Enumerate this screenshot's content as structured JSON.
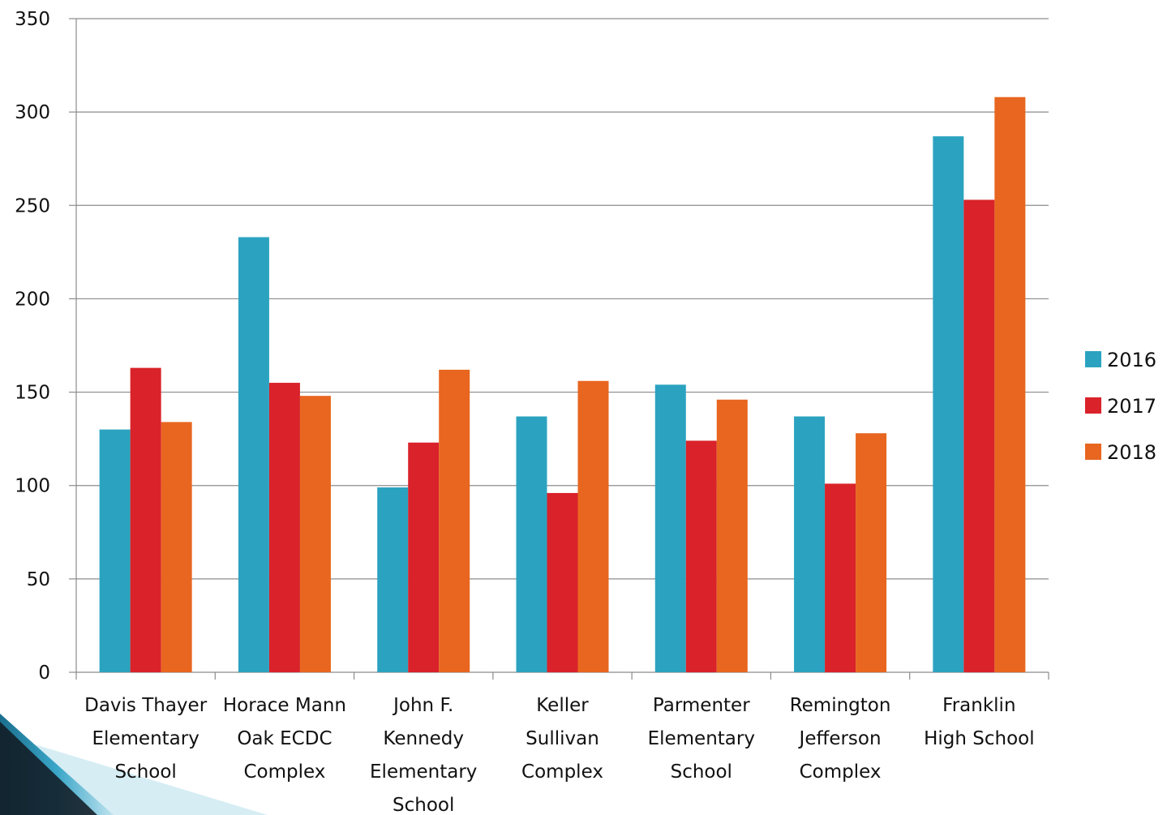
{
  "chart_data": {
    "type": "bar",
    "categories": [
      [
        "Davis Thayer",
        "Elementary",
        "School"
      ],
      [
        "Horace Mann",
        "Oak ECDC",
        "Complex"
      ],
      [
        "John F.",
        "Kennedy",
        "Elementary",
        "School"
      ],
      [
        "Keller",
        "Sullivan",
        "Complex"
      ],
      [
        "Parmenter",
        "Elementary",
        "School"
      ],
      [
        "Remington",
        "Jefferson",
        "Complex"
      ],
      [
        "Franklin",
        "High School"
      ]
    ],
    "series": [
      {
        "name": "2016",
        "color": "#2ba3c0",
        "values": [
          130,
          233,
          99,
          137,
          154,
          137,
          287
        ]
      },
      {
        "name": "2017",
        "color": "#d9222a",
        "values": [
          163,
          155,
          123,
          96,
          124,
          101,
          253
        ]
      },
      {
        "name": "2018",
        "color": "#e8661f",
        "values": [
          134,
          148,
          162,
          156,
          146,
          128,
          308
        ]
      }
    ],
    "ylim": [
      0,
      350
    ],
    "yticks": [
      0,
      50,
      100,
      150,
      200,
      250,
      300,
      350
    ],
    "grid": true,
    "legend": "right"
  }
}
